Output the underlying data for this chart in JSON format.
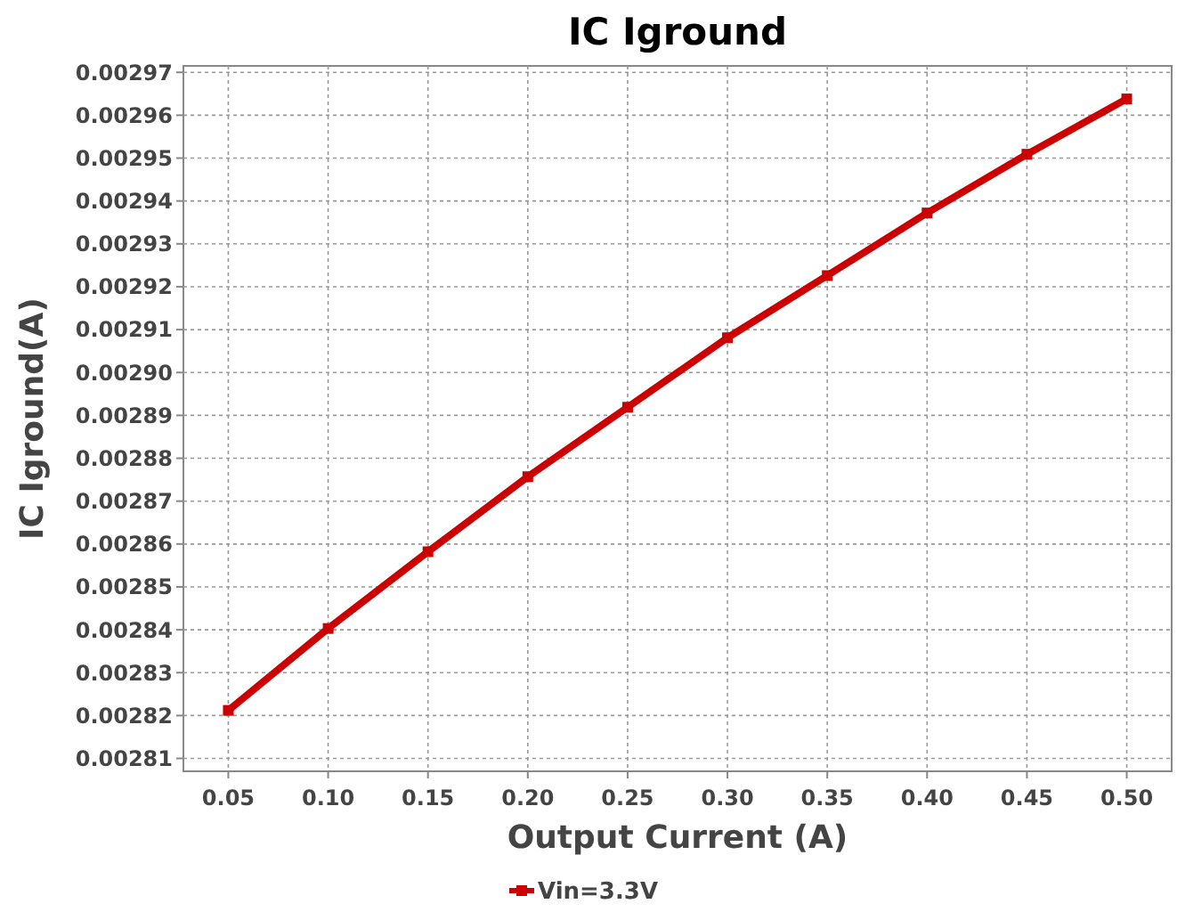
{
  "chart_data": {
    "type": "line",
    "title": "IC Iground",
    "xlabel": "Output Current (A)",
    "ylabel": "IC Iground(A)",
    "categories": [
      "0.05",
      "0.10",
      "0.15",
      "0.20",
      "0.25",
      "0.30",
      "0.35",
      "0.40",
      "0.45",
      "0.50"
    ],
    "series": [
      {
        "name": "Vin=3.3V",
        "color": "#cc0000",
        "values": [
          0.0028212,
          0.0028403,
          0.0028582,
          0.0028757,
          0.0028919,
          0.0029081,
          0.0029226,
          0.0029372,
          0.0029509,
          0.0029638
        ]
      }
    ],
    "ylim": [
      0.002807,
      0.0029715
    ],
    "yticks": [
      0.00281,
      0.00282,
      0.00283,
      0.00284,
      0.00285,
      0.00286,
      0.00287,
      0.00288,
      0.00289,
      {
        "value": 0.0029,
        "label": "0.00290"
      },
      0.00291,
      0.00292,
      0.00293,
      0.00294,
      0.00295,
      0.00296,
      0.00297
    ],
    "grid": true,
    "legend": "bottom",
    "marker": "square",
    "line_style": "solid"
  }
}
